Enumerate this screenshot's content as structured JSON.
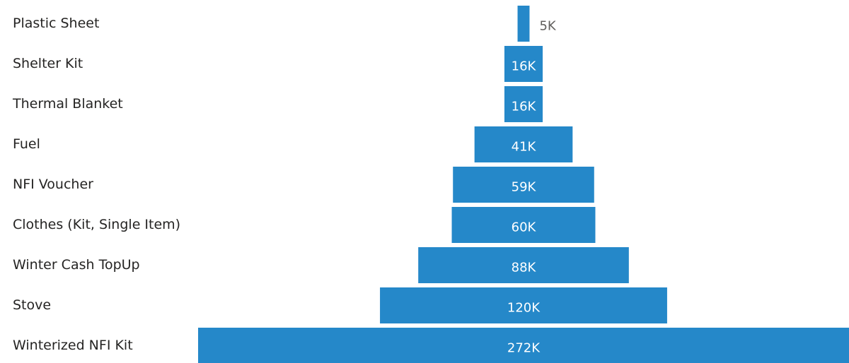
{
  "chart_data": {
    "type": "funnel",
    "title": "",
    "categories": [
      "Plastic Sheet",
      "Shelter Kit",
      "Thermal Blanket",
      "Fuel",
      "NFI Voucher",
      "Clothes (Kit, Single Item)",
      "Winter Cash TopUp",
      "Stove",
      "Winterized NFI Kit"
    ],
    "values": [
      5000,
      16000,
      16000,
      41000,
      59000,
      60000,
      88000,
      120000,
      272000
    ],
    "value_labels": [
      "5K",
      "16K",
      "16K",
      "41K",
      "59K",
      "60K",
      "88K",
      "120K",
      "272K"
    ],
    "bar_color": "#2588c9",
    "label_inside_color": "#ffffff",
    "label_outside_color": "#605e5c",
    "category_label_color": "#252423",
    "legend": "none",
    "grid": false
  }
}
